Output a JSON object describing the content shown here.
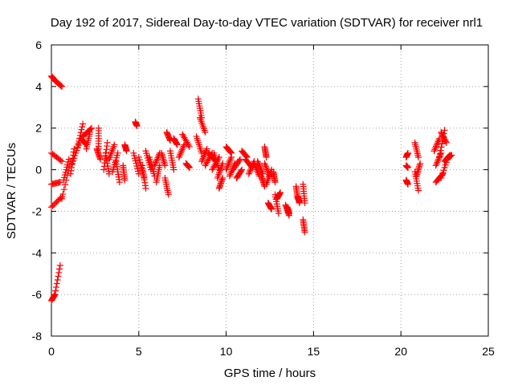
{
  "chart_data": {
    "type": "scatter",
    "title": "Day 192 of 2017, Sidereal Day-to-day VTEC variation (SDTVAR) for receiver nrl1",
    "xlabel": "GPS time / hours",
    "ylabel": "SDTVAR / TECUs",
    "xlim": [
      0,
      25
    ],
    "ylim": [
      -8,
      6
    ],
    "xticks": [
      0,
      5,
      10,
      15,
      20,
      25
    ],
    "yticks": [
      -8,
      -6,
      -4,
      -2,
      0,
      2,
      4,
      6
    ],
    "xtick_labels": [
      "0",
      "5",
      "10",
      "15",
      "20",
      "25"
    ],
    "ytick_labels": [
      "-8",
      "-6",
      "-4",
      "-2",
      "0",
      "2",
      "4",
      "6"
    ],
    "grid": true,
    "marker": "+",
    "color": "#ff0000",
    "segments": [
      [
        0.0,
        4.5,
        0.25,
        4.25
      ],
      [
        0.25,
        4.25,
        0.6,
        4.0
      ],
      [
        0.0,
        0.8,
        0.6,
        0.4
      ],
      [
        0.0,
        -0.7,
        0.5,
        -0.6
      ],
      [
        0.0,
        -1.8,
        0.6,
        -1.3
      ],
      [
        0.0,
        -6.3,
        0.2,
        -6.0
      ],
      [
        0.2,
        -6.0,
        0.5,
        -4.6
      ],
      [
        0.6,
        -1.4,
        1.1,
        0.4
      ],
      [
        0.7,
        -0.5,
        1.0,
        0.5
      ],
      [
        1.1,
        -0.2,
        1.3,
        1.0
      ],
      [
        1.2,
        0.3,
        1.6,
        1.3
      ],
      [
        1.5,
        1.1,
        1.8,
        2.2
      ],
      [
        1.7,
        1.5,
        2.0,
        1.2
      ],
      [
        1.8,
        1.6,
        2.3,
        2.0
      ],
      [
        2.0,
        1.0,
        2.2,
        1.8
      ],
      [
        2.6,
        1.0,
        2.8,
        0.5
      ],
      [
        2.7,
        2.0,
        2.7,
        1.0
      ],
      [
        3.0,
        0.0,
        3.2,
        1.3
      ],
      [
        3.1,
        0.8,
        3.3,
        -0.2
      ],
      [
        3.3,
        0.5,
        3.6,
        1.2
      ],
      [
        3.5,
        -0.1,
        3.8,
        0.8
      ],
      [
        3.7,
        0.4,
        3.9,
        -0.6
      ],
      [
        4.1,
        0.2,
        4.2,
        -0.5
      ],
      [
        4.2,
        1.2,
        4.3,
        0.9
      ],
      [
        4.7,
        0.8,
        5.0,
        -0.2
      ],
      [
        4.8,
        2.3,
        4.9,
        2.1
      ],
      [
        5.0,
        0.6,
        5.3,
        -0.4
      ],
      [
        5.2,
        0.2,
        5.4,
        -0.9
      ],
      [
        5.4,
        0.9,
        5.7,
        0.0
      ],
      [
        5.6,
        0.6,
        5.9,
        -0.3
      ],
      [
        5.9,
        0.2,
        6.2,
        0.8
      ],
      [
        6.0,
        -0.6,
        6.2,
        0.2
      ],
      [
        6.3,
        0.8,
        6.5,
        0.2
      ],
      [
        6.5,
        -0.4,
        6.7,
        -1.2
      ],
      [
        6.6,
        1.8,
        6.8,
        1.4
      ],
      [
        6.8,
        0.9,
        7.0,
        0.0
      ],
      [
        7.0,
        1.5,
        7.2,
        1.2
      ],
      [
        7.3,
        0.6,
        7.6,
        1.2
      ],
      [
        7.5,
        1.7,
        7.9,
        1.1
      ],
      [
        7.7,
        0.3,
        7.9,
        0.1
      ],
      [
        8.3,
        1.6,
        8.6,
        0.8
      ],
      [
        8.4,
        3.4,
        8.6,
        2.5
      ],
      [
        8.5,
        2.5,
        8.8,
        1.8
      ],
      [
        8.6,
        0.4,
        8.9,
        1.0
      ],
      [
        8.8,
        0.2,
        9.2,
        0.8
      ],
      [
        9.0,
        0.8,
        9.4,
        0.4
      ],
      [
        9.2,
        0.0,
        9.6,
        0.6
      ],
      [
        9.5,
        -0.4,
        9.8,
        0.3
      ],
      [
        9.3,
        0.8,
        9.6,
        0.0
      ],
      [
        9.6,
        -0.9,
        9.8,
        -0.4
      ],
      [
        10.0,
        1.1,
        10.3,
        0.8
      ],
      [
        10.0,
        0.0,
        10.3,
        0.6
      ],
      [
        10.2,
        -0.3,
        10.5,
        0.3
      ],
      [
        10.4,
        0.0,
        10.8,
        0.5
      ],
      [
        10.6,
        -0.4,
        10.9,
        0.0
      ],
      [
        10.9,
        0.9,
        11.2,
        0.6
      ],
      [
        11.1,
        0.5,
        11.5,
        0.1
      ],
      [
        11.3,
        -0.2,
        11.6,
        0.4
      ],
      [
        11.6,
        0.3,
        11.9,
        -0.3
      ],
      [
        11.8,
        0.4,
        12.1,
        -0.2
      ],
      [
        12.0,
        -0.3,
        12.2,
        -0.8
      ],
      [
        12.2,
        1.1,
        12.3,
        0.6
      ],
      [
        12.2,
        0.3,
        12.5,
        -0.3
      ],
      [
        12.3,
        -0.7,
        12.6,
        0.0
      ],
      [
        12.4,
        -1.6,
        12.6,
        -1.9
      ],
      [
        12.7,
        -0.1,
        12.8,
        -0.6
      ],
      [
        12.8,
        -1.2,
        13.0,
        -2.1
      ],
      [
        12.9,
        -1.4,
        13.1,
        -1.1
      ],
      [
        13.4,
        -1.7,
        13.6,
        -2.2
      ],
      [
        13.5,
        -1.8,
        13.6,
        -2.1
      ],
      [
        14.0,
        -0.8,
        14.1,
        -1.4
      ],
      [
        14.1,
        -1.3,
        14.2,
        -1.6
      ],
      [
        14.4,
        -0.7,
        14.5,
        -1.6
      ],
      [
        14.4,
        -2.4,
        14.5,
        -3.0
      ],
      [
        20.3,
        0.2,
        20.4,
        0.1
      ],
      [
        20.3,
        -0.5,
        20.4,
        -0.7
      ],
      [
        20.3,
        0.6,
        20.4,
        0.8
      ],
      [
        20.8,
        1.3,
        21.0,
        0.6
      ],
      [
        20.8,
        -0.1,
        21.0,
        -1.0
      ],
      [
        20.9,
        -0.3,
        21.1,
        0.3
      ],
      [
        21.9,
        0.9,
        22.2,
        1.5
      ],
      [
        22.0,
        -0.6,
        22.4,
        -0.2
      ],
      [
        22.0,
        0.2,
        22.3,
        0.8
      ],
      [
        22.2,
        0.6,
        22.5,
        1.9
      ],
      [
        22.3,
        1.8,
        22.6,
        1.3
      ],
      [
        22.3,
        -0.4,
        22.7,
        0.6
      ],
      [
        22.5,
        0.4,
        22.8,
        0.7
      ],
      [
        22.6,
        0.5,
        22.9,
        0.7
      ]
    ],
    "points_per_segment": 9
  }
}
